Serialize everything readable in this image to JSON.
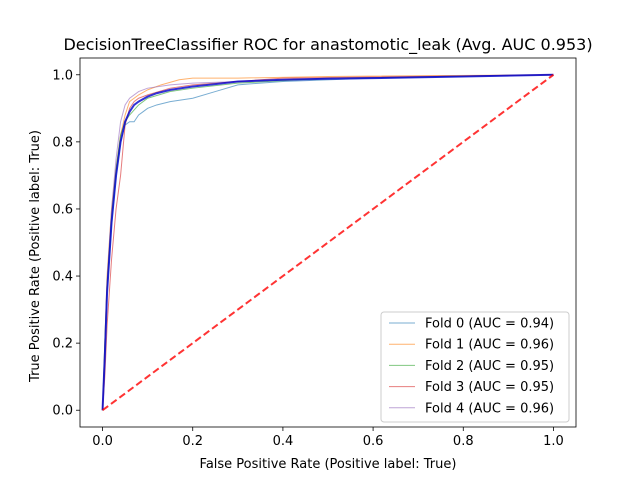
{
  "chart_data": {
    "type": "line",
    "title": "DecisionTreeClassifier ROC for anastomotic_leak (Avg. AUC 0.953)",
    "xlabel": "False Positive Rate (Positive label: True)",
    "ylabel": "True Positive Rate (Positive label: True)",
    "xlim": [
      -0.05,
      1.05
    ],
    "ylim": [
      -0.05,
      1.05
    ],
    "x_ticks": [
      "0.0",
      "0.2",
      "0.4",
      "0.6",
      "0.8",
      "1.0"
    ],
    "y_ticks": [
      "0.0",
      "0.2",
      "0.4",
      "0.6",
      "0.8",
      "1.0"
    ],
    "grid": false,
    "legend_position": "lower right",
    "series": [
      {
        "name": "Fold 0 (AUC = 0.94)",
        "color": "#1f77b4",
        "x": [
          0,
          0.005,
          0.01,
          0.02,
          0.03,
          0.04,
          0.05,
          0.06,
          0.07,
          0.08,
          0.09,
          0.1,
          0.12,
          0.15,
          0.2,
          0.25,
          0.3,
          0.4,
          0.6,
          1.0
        ],
        "y": [
          0,
          0.15,
          0.35,
          0.55,
          0.7,
          0.8,
          0.85,
          0.86,
          0.86,
          0.88,
          0.89,
          0.9,
          0.91,
          0.92,
          0.93,
          0.95,
          0.97,
          0.98,
          0.99,
          1.0
        ]
      },
      {
        "name": "Fold 1 (AUC = 0.96)",
        "color": "#ff7f0e",
        "x": [
          0,
          0.005,
          0.01,
          0.02,
          0.03,
          0.04,
          0.05,
          0.06,
          0.08,
          0.1,
          0.13,
          0.17,
          0.2,
          0.3,
          0.5,
          1.0
        ],
        "y": [
          0,
          0.2,
          0.4,
          0.6,
          0.72,
          0.82,
          0.88,
          0.92,
          0.94,
          0.955,
          0.97,
          0.985,
          0.99,
          0.99,
          0.995,
          1.0
        ]
      },
      {
        "name": "Fold 2 (AUC = 0.95)",
        "color": "#2ca02c",
        "x": [
          0,
          0.005,
          0.01,
          0.02,
          0.03,
          0.04,
          0.05,
          0.06,
          0.08,
          0.1,
          0.15,
          0.2,
          0.3,
          0.5,
          1.0
        ],
        "y": [
          0,
          0.2,
          0.38,
          0.58,
          0.72,
          0.82,
          0.86,
          0.88,
          0.91,
          0.93,
          0.95,
          0.96,
          0.975,
          0.99,
          1.0
        ]
      },
      {
        "name": "Fold 3 (AUC = 0.95)",
        "color": "#d62728",
        "x": [
          0,
          0.005,
          0.01,
          0.02,
          0.03,
          0.04,
          0.05,
          0.06,
          0.07,
          0.08,
          0.1,
          0.15,
          0.2,
          0.3,
          0.4,
          1.0
        ],
        "y": [
          0,
          0.1,
          0.25,
          0.45,
          0.6,
          0.7,
          0.85,
          0.9,
          0.92,
          0.93,
          0.94,
          0.96,
          0.97,
          0.98,
          0.99,
          1.0
        ]
      },
      {
        "name": "Fold 4 (AUC = 0.96)",
        "color": "#9467bd",
        "x": [
          0,
          0.005,
          0.01,
          0.02,
          0.03,
          0.04,
          0.05,
          0.06,
          0.08,
          0.1,
          0.15,
          0.2,
          0.3,
          0.5,
          1.0
        ],
        "y": [
          0,
          0.18,
          0.38,
          0.6,
          0.75,
          0.86,
          0.91,
          0.93,
          0.95,
          0.96,
          0.97,
          0.975,
          0.98,
          0.99,
          1.0
        ]
      }
    ],
    "mean_curve": {
      "color": "#0000cc",
      "x": [
        0,
        0.005,
        0.01,
        0.02,
        0.03,
        0.04,
        0.05,
        0.06,
        0.07,
        0.08,
        0.1,
        0.12,
        0.15,
        0.2,
        0.25,
        0.3,
        0.4,
        0.5,
        0.6,
        0.8,
        1.0
      ],
      "y": [
        0,
        0.16,
        0.35,
        0.56,
        0.7,
        0.8,
        0.86,
        0.89,
        0.91,
        0.92,
        0.935,
        0.945,
        0.955,
        0.965,
        0.972,
        0.98,
        0.985,
        0.988,
        0.99,
        0.995,
        1.0
      ]
    },
    "chance_line": {
      "color": "#ff0000",
      "x": [
        0,
        1
      ],
      "y": [
        0,
        1
      ]
    }
  }
}
